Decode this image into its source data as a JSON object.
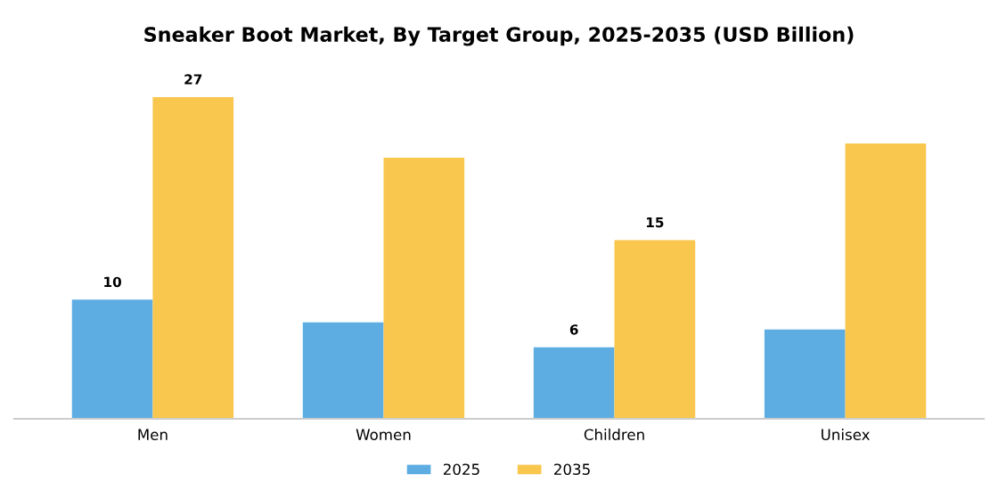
{
  "chart_data": {
    "type": "bar",
    "title": "Sneaker Boot Market, By Target Group, 2025-2035 (USD Billion)",
    "categories": [
      "Men",
      "Women",
      "Children",
      "Unisex"
    ],
    "series": [
      {
        "name": "2025",
        "color": "#5dade2",
        "values": [
          10,
          8.1,
          6,
          7.5
        ],
        "value_labels": [
          "10",
          null,
          "6",
          null
        ]
      },
      {
        "name": "2035",
        "color": "#f9c64e",
        "values": [
          27,
          21.9,
          15,
          23.1
        ],
        "value_labels": [
          "27",
          null,
          "15",
          null
        ]
      }
    ],
    "legend": "bottom",
    "grid": false
  }
}
